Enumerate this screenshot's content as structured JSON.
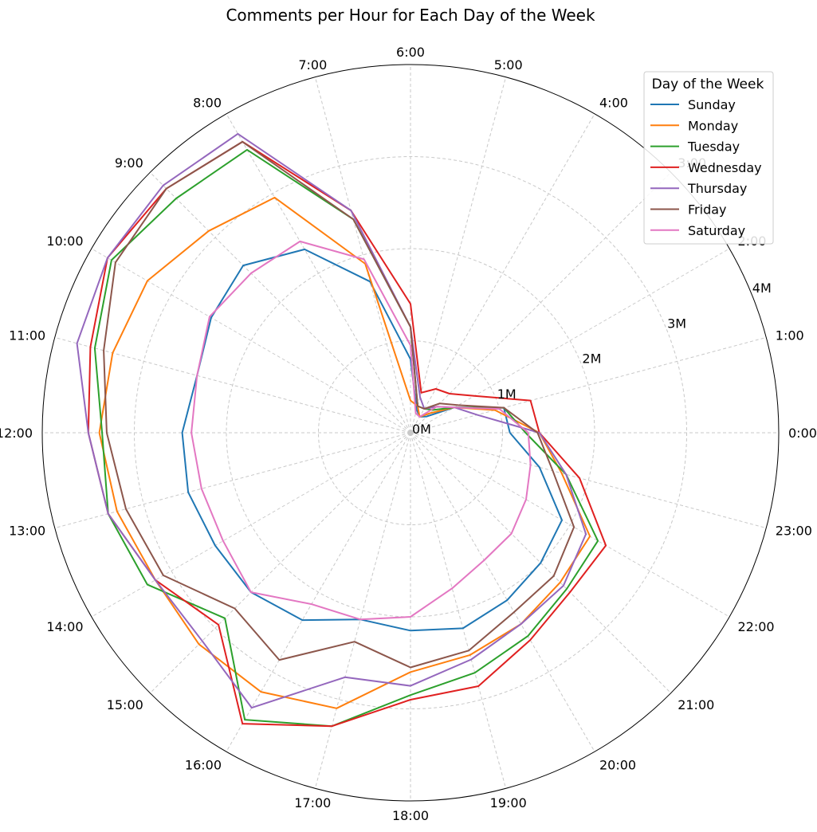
{
  "chart_data": {
    "type": "polar-line",
    "title": "Comments per Hour for Each Day of the Week",
    "hour_labels": [
      "0:00",
      "1:00",
      "2:00",
      "3:00",
      "4:00",
      "5:00",
      "6:00",
      "7:00",
      "8:00",
      "9:00",
      "10:00",
      "11:00",
      "12:00",
      "13:00",
      "14:00",
      "15:00",
      "16:00",
      "17:00",
      "18:00",
      "19:00",
      "20:00",
      "21:00",
      "22:00",
      "23:00"
    ],
    "r_ticks": [
      0,
      1,
      2,
      3,
      4
    ],
    "r_tick_labels": [
      "0M",
      "1M",
      "2M",
      "3M",
      "4M"
    ],
    "r_max": 4,
    "grid": true,
    "legend": {
      "title": "Day of the Week",
      "position": "top-right"
    },
    "series": [
      {
        "name": "Sunday",
        "color": "#1f77b4",
        "values": [
          1.08,
          1.05,
          0.55,
          0.25,
          0.2,
          0.26,
          0.8,
          1.7,
          2.3,
          2.57,
          2.5,
          2.4,
          2.48,
          2.5,
          2.45,
          2.45,
          2.35,
          2.1,
          2.15,
          2.2,
          2.1,
          2.0,
          1.9,
          1.45
        ]
      },
      {
        "name": "Monday",
        "color": "#ff7f0e",
        "values": [
          1.4,
          0.95,
          0.55,
          0.3,
          0.2,
          0.3,
          0.35,
          1.9,
          2.95,
          3.1,
          3.3,
          3.35,
          3.38,
          3.3,
          3.2,
          3.25,
          3.25,
          3.1,
          2.6,
          2.5,
          2.4,
          2.3,
          2.25,
          1.7
        ]
      },
      {
        "name": "Tuesday",
        "color": "#2ca02c",
        "values": [
          1.25,
          1.05,
          0.55,
          0.35,
          0.3,
          0.3,
          1.15,
          2.4,
          3.55,
          3.6,
          3.75,
          3.55,
          3.35,
          3.4,
          3.3,
          2.85,
          3.6,
          3.3,
          2.85,
          2.7,
          2.55,
          2.4,
          2.35,
          1.75
        ]
      },
      {
        "name": "Wednesday",
        "color": "#e02020",
        "values": [
          1.4,
          1.35,
          0.8,
          0.6,
          0.55,
          0.45,
          1.4,
          2.5,
          3.65,
          3.75,
          3.8,
          3.6,
          3.5,
          3.4,
          3.2,
          2.95,
          3.65,
          3.3,
          2.9,
          2.85,
          2.6,
          2.45,
          2.45,
          1.9
        ]
      },
      {
        "name": "Thursday",
        "color": "#9467bd",
        "values": [
          1.4,
          0.75,
          0.55,
          0.4,
          0.3,
          0.4,
          1.15,
          2.5,
          3.75,
          3.8,
          3.8,
          3.75,
          3.5,
          3.4,
          3.2,
          3.2,
          3.45,
          2.75,
          2.75,
          2.55,
          2.4,
          2.35,
          2.2,
          1.75
        ]
      },
      {
        "name": "Friday",
        "color": "#8c564b",
        "values": [
          1.38,
          1.05,
          0.6,
          0.45,
          0.3,
          0.3,
          1.15,
          2.4,
          3.65,
          3.75,
          3.7,
          3.45,
          3.3,
          3.2,
          3.1,
          2.7,
          2.85,
          2.35,
          2.55,
          2.45,
          2.25,
          2.2,
          2.05,
          1.6
        ]
      },
      {
        "name": "Saturday",
        "color": "#e377c2",
        "values": [
          1.28,
          1.0,
          0.55,
          0.4,
          0.2,
          0.22,
          0.95,
          1.95,
          2.4,
          2.45,
          2.52,
          2.4,
          2.38,
          2.35,
          2.35,
          2.45,
          2.15,
          2.1,
          2.0,
          1.75,
          1.6,
          1.55,
          1.45,
          1.35
        ]
      }
    ]
  }
}
